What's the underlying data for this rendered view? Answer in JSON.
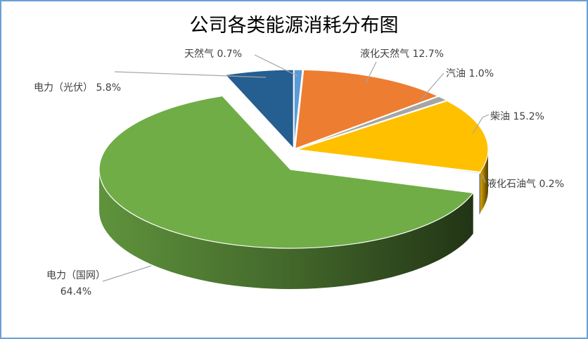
{
  "chart_data": {
    "type": "pie",
    "title": "公司各类能源消耗分布图",
    "slices": [
      {
        "name": "天然气",
        "value": 0.7,
        "label": "天然气 0.7%",
        "color": "#5b9bd5"
      },
      {
        "name": "液化天然气",
        "value": 12.7,
        "label": "液化天然气 12.7%",
        "color": "#ed7d31"
      },
      {
        "name": "汽油",
        "value": 1.0,
        "label": "汽油 1.0%",
        "color": "#a5a5a5"
      },
      {
        "name": "柴油",
        "value": 15.2,
        "label": "柴油 15.2%",
        "color": "#ffc000"
      },
      {
        "name": "液化石油气",
        "value": 0.2,
        "label": "液化石油气 0.2%",
        "color": "#4472c4"
      },
      {
        "name": "电力（国网）",
        "value": 64.4,
        "label": "电力（国网）\n64.4%",
        "color": "#70ad47"
      },
      {
        "name": "电力（光伏）",
        "value": 5.8,
        "label": "电力（光伏） 5.8%",
        "color": "#255e91"
      }
    ],
    "legend": "none",
    "style": "3d-exploded-pie"
  }
}
